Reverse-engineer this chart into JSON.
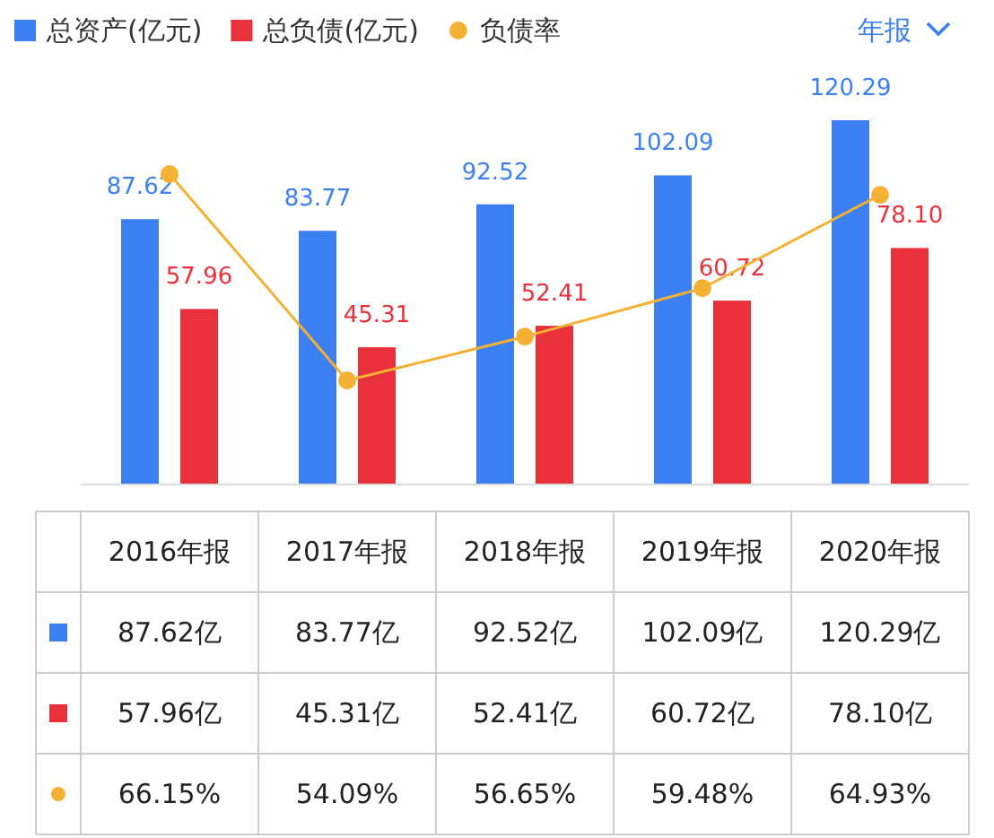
{
  "chart_data": {
    "type": "bar",
    "categories": [
      "2016年报",
      "2017年报",
      "2018年报",
      "2019年报",
      "2020年报"
    ],
    "series": [
      {
        "name": "总资产(亿元)",
        "color": "#3b7ff2",
        "values": [
          87.62,
          83.77,
          92.52,
          102.09,
          120.29
        ],
        "value_labels": [
          "87.62",
          "83.77",
          "92.52",
          "102.09",
          "120.29"
        ]
      },
      {
        "name": "总负债(亿元)",
        "color": "#e8313a",
        "values": [
          57.96,
          45.31,
          52.41,
          60.72,
          78.1
        ],
        "value_labels": [
          "57.96",
          "45.31",
          "52.41",
          "60.72",
          "78.10"
        ]
      },
      {
        "name": "负债率",
        "type": "line",
        "axis": "y2",
        "marker": "circle",
        "color": "#f4b133",
        "values": [
          66.15,
          54.09,
          56.65,
          59.48,
          64.93
        ],
        "value_labels": [
          "66.15%",
          "54.09%",
          "56.65%",
          "59.48%",
          "64.93%"
        ]
      }
    ],
    "legend": "top left",
    "tick_labels": "x",
    "annotations": [
      "年报",
      "87.62亿",
      "83.77亿",
      "92.52亿",
      "102.09亿",
      "120.29亿",
      "57.96亿",
      "45.31亿",
      "52.41亿",
      "60.72亿",
      "78.10亿"
    ]
  }
}
